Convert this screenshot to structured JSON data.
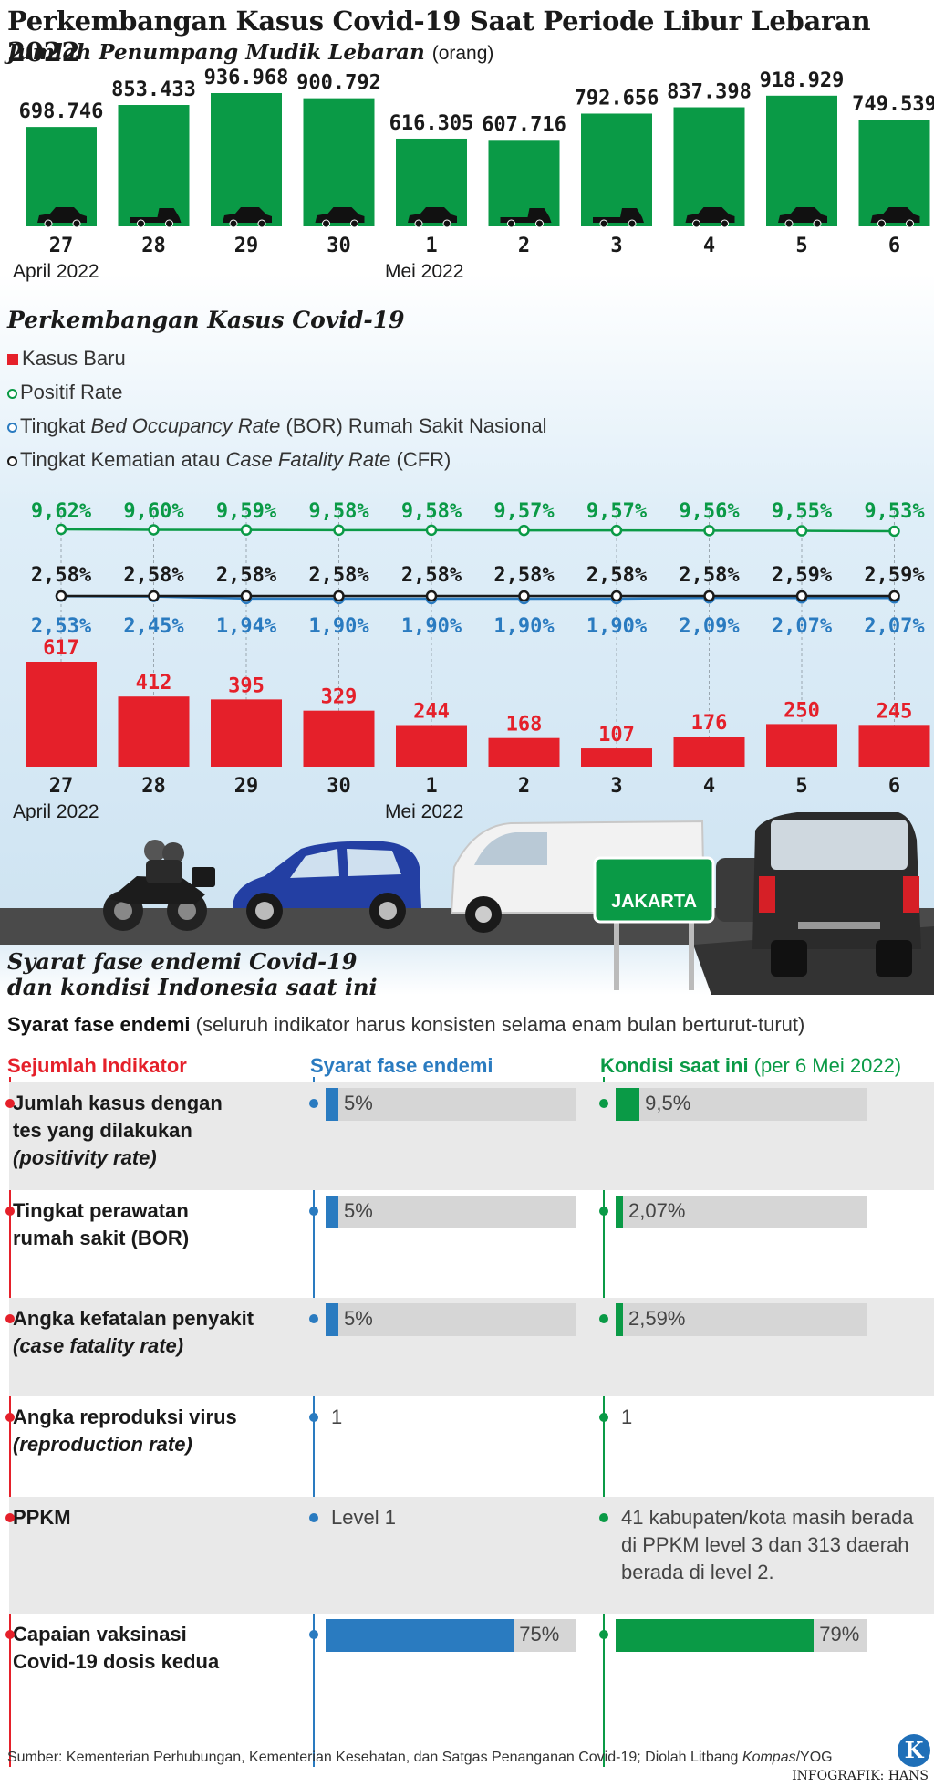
{
  "title": "Perkembangan Kasus Covid-19 Saat Periode Libur Lebaran 2022",
  "subtitle": "Jumlah Penumpang Mudik Lebaran",
  "subtitle_unit": "(orang)",
  "colors": {
    "green": "#0a9a46",
    "red": "#e5202a",
    "blue": "#2a7bc0",
    "dark": "#1a1a1a",
    "grey": "#d6d6d6"
  },
  "month_labels": {
    "april": "April 2022",
    "mei": "Mei 2022"
  },
  "chart_data": [
    {
      "type": "bar",
      "title": "Jumlah Penumpang Mudik Lebaran",
      "unit": "(orang)",
      "categories": [
        "27",
        "28",
        "29",
        "30",
        "1",
        "2",
        "3",
        "4",
        "5",
        "6"
      ],
      "values": [
        698746,
        853433,
        936968,
        900792,
        616305,
        607716,
        792656,
        837398,
        918929,
        749539
      ],
      "value_labels": [
        "698.746",
        "853.433",
        "936.968",
        "900.792",
        "616.305",
        "607.716",
        "792.656",
        "837.398",
        "918.929",
        "749.539"
      ],
      "color": "#0a9a46",
      "icons": [
        "car-icon",
        "pickup-icon",
        "car-icon",
        "car-icon",
        "car-icon",
        "pickup-icon",
        "pickup-icon",
        "car-icon",
        "car-icon",
        "car-icon"
      ]
    },
    {
      "type": "bar+line",
      "title": "Perkembangan Kasus Covid-19",
      "categories": [
        "27",
        "28",
        "29",
        "30",
        "1",
        "2",
        "3",
        "4",
        "5",
        "6"
      ],
      "series": [
        {
          "name": "Kasus Baru",
          "kind": "bar",
          "color": "#e5202a",
          "values": [
            617,
            412,
            395,
            329,
            244,
            168,
            107,
            176,
            250,
            245
          ],
          "labels": [
            "617",
            "412",
            "395",
            "329",
            "244",
            "168",
            "107",
            "176",
            "250",
            "245"
          ]
        },
        {
          "name": "Positif Rate",
          "kind": "line",
          "color": "#0a9a46",
          "values": [
            9.62,
            9.6,
            9.59,
            9.58,
            9.58,
            9.57,
            9.57,
            9.56,
            9.55,
            9.53
          ],
          "labels": [
            "9,62%",
            "9,60%",
            "9,59%",
            "9,58%",
            "9,58%",
            "9,57%",
            "9,57%",
            "9,56%",
            "9,55%",
            "9,53%"
          ]
        },
        {
          "name": "Tingkat Bed Occupancy Rate (BOR) Rumah Sakit Nasional",
          "kind": "line",
          "color": "#2a7bc0",
          "values": [
            2.53,
            2.45,
            1.94,
            1.9,
            1.9,
            1.9,
            1.9,
            2.09,
            2.07,
            2.07
          ],
          "labels": [
            "2,53%",
            "2,45%",
            "1,94%",
            "1,90%",
            "1,90%",
            "1,90%",
            "1,90%",
            "2,09%",
            "2,07%",
            "2,07%"
          ]
        },
        {
          "name": "Tingkat Kematian atau Case Fatality Rate (CFR)",
          "kind": "line",
          "color": "#1a1a1a",
          "values": [
            2.58,
            2.58,
            2.58,
            2.58,
            2.58,
            2.58,
            2.58,
            2.58,
            2.59,
            2.59
          ],
          "labels": [
            "2,58%",
            "2,58%",
            "2,58%",
            "2,58%",
            "2,58%",
            "2,58%",
            "2,58%",
            "2,58%",
            "2,59%",
            "2,59%"
          ]
        }
      ]
    },
    {
      "type": "table",
      "title": "Syarat fase endemi Covid-19 dan kondisi Indonesia saat ini",
      "columns": [
        "Sejumlah Indikator",
        "Syarat fase endemi",
        "Kondisi saat ini (per 6 Mei 2022)"
      ],
      "rows": [
        {
          "indicator": [
            "Jumlah kasus dengan",
            "tes yang dilakukan",
            "(positivity rate)"
          ],
          "req": "5%",
          "req_value": 5,
          "cur": "9,5%",
          "cur_value": 9.5
        },
        {
          "indicator": [
            "Tingkat perawatan",
            "rumah sakit (BOR)"
          ],
          "req": "5%",
          "req_value": 5,
          "cur": "2,07%",
          "cur_value": 2.07
        },
        {
          "indicator": [
            "Angka kefatalan penyakit",
            "(case fatality rate)"
          ],
          "req": "5%",
          "req_value": 5,
          "cur": "2,59%",
          "cur_value": 2.59
        },
        {
          "indicator": [
            "Angka reproduksi virus",
            "(reproduction rate)"
          ],
          "req": "1",
          "cur": "1"
        },
        {
          "indicator": [
            "PPKM"
          ],
          "req": "Level 1",
          "cur": "41 kabupaten/kota masih berada di PPKM level 3 dan 313 daerah berada di level 2."
        },
        {
          "indicator": [
            "Capaian vaksinasi",
            "Covid-19 dosis kedua"
          ],
          "req": "75%",
          "req_value": 75,
          "cur": "79%",
          "cur_value": 79
        }
      ]
    }
  ],
  "legend": {
    "kasus": "Kasus Baru",
    "positif": "Positif Rate",
    "bor_pre": "Tingkat ",
    "bor_it": "Bed Occupancy Rate",
    "bor_post": " (BOR) Rumah Sakit Nasional",
    "cfr_pre": "Tingkat Kematian atau ",
    "cfr_it": "Case Fatality Rate",
    "cfr_post": " (CFR)"
  },
  "road_sign": "JAKARTA",
  "endemic": {
    "title_line1": "Syarat fase endemi Covid-19",
    "title_line2": "dan kondisi Indonesia saat ini",
    "sub_bold": "Syarat fase endemi",
    "sub_note": "(seluruh indikator harus konsisten selama enam bulan berturut-turut)",
    "col1": "Sejumlah Indikator",
    "col2": "Syarat fase endemi",
    "col3": "Kondisi saat ini",
    "col3_note": "(per 6 Mei 2022)"
  },
  "footer": {
    "source_pre": "Sumber: Kementerian Perhubungan, Kementerian Kesehatan, dan Satgas Penanganan Covid-19; Diolah Litbang ",
    "source_it": "Kompas",
    "source_post": "/YOG",
    "credit": "INFOGRAFIK: HANS",
    "logo": "K"
  }
}
